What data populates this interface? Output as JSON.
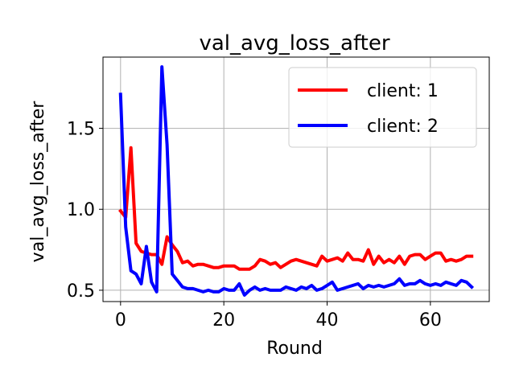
{
  "chart_data": {
    "type": "line",
    "title": "val_avg_loss_after",
    "xlabel": "Round",
    "ylabel": "val_avg_loss_after",
    "xlim": [
      -3.4,
      71.4
    ],
    "ylim": [
      0.43,
      1.94
    ],
    "xticks": [
      0,
      20,
      40,
      60
    ],
    "yticks": [
      0.5,
      1.0,
      1.5
    ],
    "xtick_labels": [
      "0",
      "20",
      "40",
      "60"
    ],
    "ytick_labels": [
      "0.5",
      "1.0",
      "1.5"
    ],
    "grid": true,
    "legend_position": "top-right",
    "series": [
      {
        "name": "client: 1",
        "color": "#ff0000",
        "values": [
          0.99,
          0.95,
          1.38,
          0.79,
          0.74,
          0.73,
          0.72,
          0.72,
          0.66,
          0.83,
          0.78,
          0.74,
          0.67,
          0.68,
          0.65,
          0.66,
          0.66,
          0.65,
          0.64,
          0.64,
          0.65,
          0.65,
          0.65,
          0.63,
          0.63,
          0.63,
          0.65,
          0.69,
          0.68,
          0.66,
          0.67,
          0.64,
          0.66,
          0.68,
          0.69,
          0.68,
          0.67,
          0.66,
          0.65,
          0.71,
          0.68,
          0.69,
          0.7,
          0.68,
          0.73,
          0.69,
          0.69,
          0.68,
          0.75,
          0.66,
          0.71,
          0.67,
          0.69,
          0.67,
          0.71,
          0.66,
          0.71,
          0.72,
          0.72,
          0.69,
          0.71,
          0.73,
          0.73,
          0.68,
          0.69,
          0.68,
          0.69,
          0.71,
          0.71
        ]
      },
      {
        "name": "client: 2",
        "color": "#0000ff",
        "values": [
          1.71,
          0.89,
          0.62,
          0.6,
          0.54,
          0.77,
          0.55,
          0.49,
          1.88,
          1.4,
          0.6,
          0.56,
          0.52,
          0.51,
          0.51,
          0.5,
          0.49,
          0.5,
          0.49,
          0.49,
          0.51,
          0.5,
          0.5,
          0.54,
          0.47,
          0.5,
          0.52,
          0.5,
          0.51,
          0.5,
          0.5,
          0.5,
          0.52,
          0.51,
          0.5,
          0.52,
          0.51,
          0.53,
          0.5,
          0.51,
          0.53,
          0.55,
          0.5,
          0.51,
          0.52,
          0.53,
          0.54,
          0.51,
          0.53,
          0.52,
          0.53,
          0.52,
          0.53,
          0.54,
          0.57,
          0.53,
          0.54,
          0.54,
          0.56,
          0.54,
          0.53,
          0.54,
          0.53,
          0.55,
          0.54,
          0.53,
          0.56,
          0.55,
          0.52
        ]
      }
    ]
  }
}
